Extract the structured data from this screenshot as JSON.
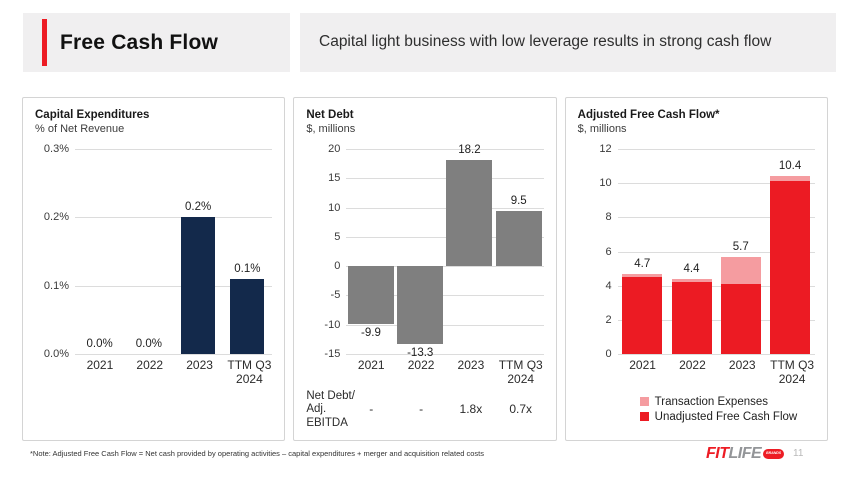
{
  "header": {
    "title": "Free Cash Flow",
    "subtitle": "Capital light business with low leverage results in strong cash flow"
  },
  "colors": {
    "accent_red": "#ED1C24",
    "navy": "#13294B",
    "gray_bar": "#7F7F7F",
    "pink": "#F59CA0",
    "header_box_gray": "#F0EFF0",
    "panel_border": "#D4D4D4",
    "gridline": "#DCDCDC"
  },
  "chart_data": [
    {
      "id": "capex",
      "type": "bar",
      "title": "Capital Expenditures",
      "subtitle": "% of Net Revenue",
      "categories": [
        "2021",
        "2022",
        "2023",
        "TTM Q3\n2024"
      ],
      "values": [
        0.0,
        0.0,
        0.2,
        0.11
      ],
      "value_labels": [
        "0.0%",
        "0.0%",
        "0.2%",
        "0.1%"
      ],
      "ylim": [
        0,
        0.3
      ],
      "yticks": [
        {
          "v": 0.3,
          "label": "0.3%"
        },
        {
          "v": 0.2,
          "label": "0.2%"
        },
        {
          "v": 0.1,
          "label": "0.1%"
        },
        {
          "v": 0.0,
          "label": "0.0%"
        }
      ],
      "bar_color": "#13294B",
      "grid": true,
      "legend_position": "none"
    },
    {
      "id": "net-debt",
      "type": "bar",
      "title": "Net Debt",
      "subtitle": "$, millions",
      "categories": [
        "2021",
        "2022",
        "2023",
        "TTM Q3\n2024"
      ],
      "values": [
        -9.9,
        -13.3,
        18.2,
        9.5
      ],
      "value_labels": [
        "-9.9",
        "-13.3",
        "18.2",
        "9.5"
      ],
      "ylim": [
        -15,
        20
      ],
      "yticks": [
        {
          "v": 20,
          "label": "20"
        },
        {
          "v": 15,
          "label": "15"
        },
        {
          "v": 10,
          "label": "10"
        },
        {
          "v": 5,
          "label": "5"
        },
        {
          "v": 0,
          "label": "0"
        },
        {
          "v": -5,
          "label": "-5"
        },
        {
          "v": -10,
          "label": "-10"
        },
        {
          "v": -15,
          "label": "-15"
        }
      ],
      "bar_color": "#7F7F7F",
      "grid": true,
      "legend_position": "none",
      "footer_row": {
        "label": "Net Debt/\nAdj.\nEBITDA",
        "values": [
          "-",
          "-",
          "1.8x",
          "0.7x"
        ]
      }
    },
    {
      "id": "adjusted-fcf",
      "type": "stacked-bar",
      "title": "Adjusted Free Cash Flow*",
      "subtitle": "$, millions",
      "categories": [
        "2021",
        "2022",
        "2023",
        "TTM Q3\n2024"
      ],
      "series": [
        {
          "name": "Unadjusted Free Cash Flow",
          "color": "#EC1B23",
          "values": [
            4.5,
            4.2,
            4.1,
            10.1
          ]
        },
        {
          "name": "Transaction Expenses",
          "color": "#F59CA0",
          "values": [
            0.2,
            0.2,
            1.6,
            0.3
          ]
        }
      ],
      "totals": [
        4.7,
        4.4,
        5.7,
        10.4
      ],
      "total_labels": [
        "4.7",
        "4.4",
        "5.7",
        "10.4"
      ],
      "ylim": [
        0,
        12
      ],
      "yticks": [
        {
          "v": 12,
          "label": "12"
        },
        {
          "v": 10,
          "label": "10"
        },
        {
          "v": 8,
          "label": "8"
        },
        {
          "v": 6,
          "label": "6"
        },
        {
          "v": 4,
          "label": "4"
        },
        {
          "v": 2,
          "label": "2"
        },
        {
          "v": 0,
          "label": "0"
        }
      ],
      "grid": true,
      "legend_position": "bottom",
      "legend": [
        {
          "label": "Transaction Expenses",
          "color": "#F59CA0"
        },
        {
          "label": "Unadjusted Free Cash Flow",
          "color": "#EC1B23"
        }
      ]
    }
  ],
  "footer": {
    "note": "*Note: Adjusted Free Cash Flow = Net cash provided by operating activities – capital expenditures + merger and acquisition related costs",
    "logo_fit": "FIT",
    "logo_life": "LIFE",
    "logo_badge": "BRANDS",
    "page_number": "11"
  }
}
